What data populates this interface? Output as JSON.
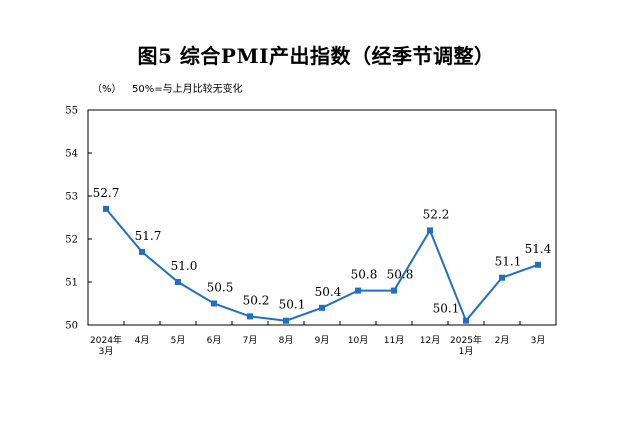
{
  "title": "图5  综合PMI产出指数（经季节调整）",
  "unit_label": "（%）",
  "note": "50%=与上月比较无变化",
  "chart_data": {
    "type": "line",
    "title": "图5  综合PMI产出指数（经季节调整）",
    "xlabel": "",
    "ylabel": "（%）",
    "categories": [
      [
        "2024年",
        "3月"
      ],
      [
        "4月"
      ],
      [
        "5月"
      ],
      [
        "6月"
      ],
      [
        "7月"
      ],
      [
        "8月"
      ],
      [
        "9月"
      ],
      [
        "10月"
      ],
      [
        "11月"
      ],
      [
        "12月"
      ],
      [
        "2025年",
        "1月"
      ],
      [
        "2月"
      ],
      [
        "3月"
      ]
    ],
    "series": [
      {
        "values": [
          52.7,
          51.7,
          51.0,
          50.5,
          50.2,
          50.1,
          50.4,
          50.8,
          50.8,
          52.2,
          50.1,
          51.1,
          51.4
        ]
      }
    ],
    "data_labels": [
      "52.7",
      "51.7",
      "51.0",
      "50.5",
      "50.2",
      "50.1",
      "50.4",
      "50.8",
      "50.8",
      "52.2",
      "50.1",
      "51.1",
      "51.4"
    ],
    "ylim": [
      50,
      55
    ],
    "yticks": [
      50,
      51,
      52,
      53,
      54,
      55
    ],
    "grid": false,
    "line_color": "#1f6fc4",
    "marker": "square"
  }
}
